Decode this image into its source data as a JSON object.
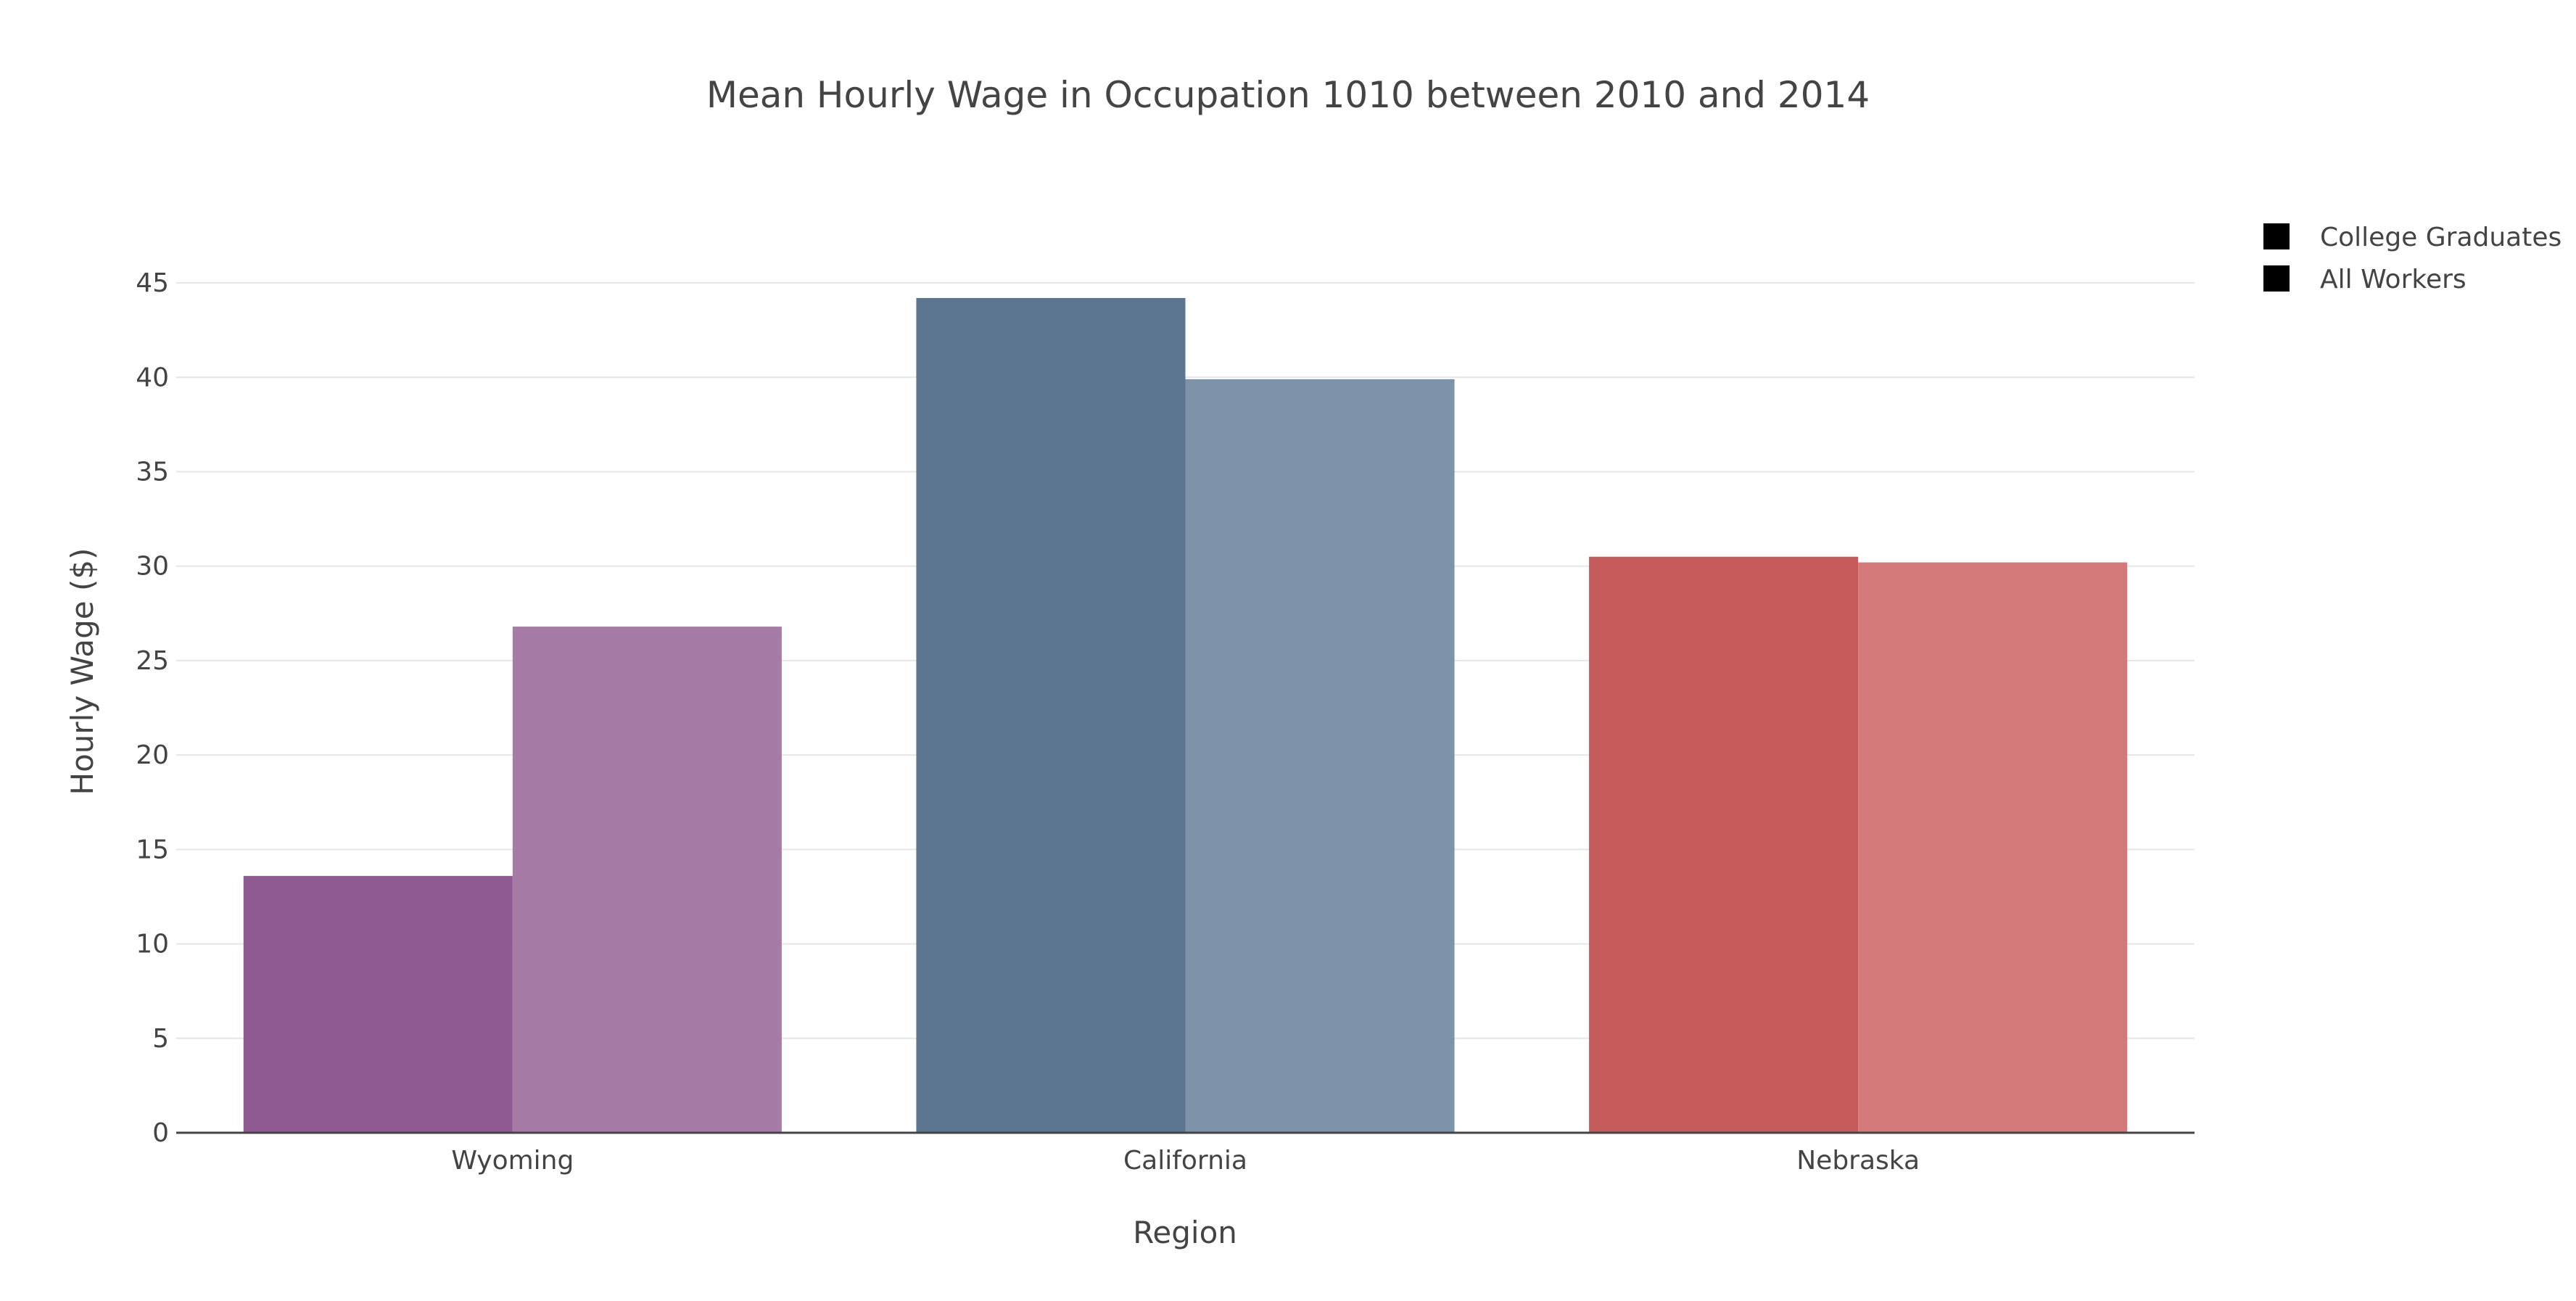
{
  "chart_data": {
    "type": "bar",
    "title": "Mean Hourly Wage in Occupation 1010 between 2010 and 2014",
    "xlabel": "Region",
    "ylabel": "Hourly Wage ($)",
    "categories": [
      "Wyoming",
      "California",
      "Nebraska"
    ],
    "series": [
      {
        "name": "College Graduates",
        "values": [
          13.6,
          44.2,
          30.5
        ],
        "colors": [
          "#8e5a91",
          "#5c7590",
          "#c55a5a"
        ]
      },
      {
        "name": "All Workers",
        "values": [
          26.8,
          39.9,
          30.2
        ],
        "colors": [
          "#a67ca7",
          "#7d93a9",
          "#d47979"
        ]
      }
    ],
    "yticks": [
      0,
      5,
      10,
      15,
      20,
      25,
      30,
      35,
      40,
      45
    ],
    "ylim": [
      0,
      47
    ],
    "grid": true,
    "legend_position": "top-right",
    "legend_marker_color": "#000000"
  }
}
